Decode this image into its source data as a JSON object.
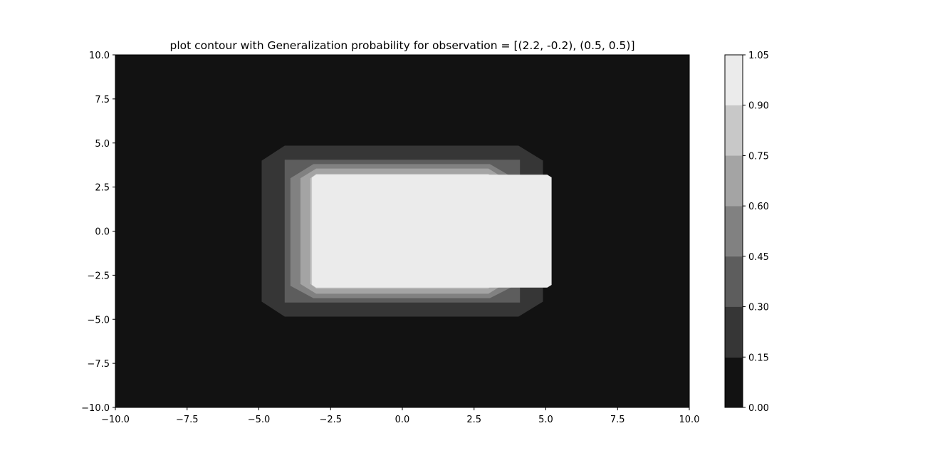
{
  "chart_data": {
    "type": "contour",
    "title": "plot contour with Generalization probability for observation = [(2.2, -0.2), (0.5, 0.5)]",
    "xlabel": "",
    "ylabel": "",
    "xlim": [
      -10,
      10
    ],
    "ylim": [
      -10,
      10
    ],
    "x_ticks": [
      "−10.0",
      "−7.5",
      "−5.0",
      "−2.5",
      "0.0",
      "2.5",
      "5.0",
      "7.5",
      "10.0"
    ],
    "y_ticks": [
      "10.0",
      "7.5",
      "5.0",
      "2.5",
      "0.0",
      "−2.5",
      "−5.0",
      "−7.5",
      "−10.0"
    ],
    "x_tick_values": [
      -10,
      -7.5,
      -5,
      -2.5,
      0,
      2.5,
      5,
      7.5,
      10
    ],
    "y_tick_values": [
      10,
      7.5,
      5,
      2.5,
      0,
      -2.5,
      -5,
      -7.5,
      -10
    ],
    "colormap": "gray",
    "colorbar": {
      "levels": [
        0.0,
        0.15,
        0.3,
        0.45,
        0.6,
        0.75,
        0.9,
        1.05
      ],
      "tick_labels": [
        "0.00",
        "0.15",
        "0.30",
        "0.45",
        "0.60",
        "0.75",
        "0.90",
        "1.05"
      ],
      "colors": [
        "#121212",
        "#363636",
        "#5d5d5d",
        "#818181",
        "#a4a4a4",
        "#c8c8c8",
        "#ebebeb"
      ]
    },
    "grid": false,
    "regions": [
      {
        "level_index": 0,
        "range": [
          0.0,
          0.15
        ],
        "color": "#121212",
        "polygon": [
          [
            -10,
            10
          ],
          [
            10,
            10
          ],
          [
            10,
            -10
          ],
          [
            -10,
            -10
          ]
        ]
      },
      {
        "level_index": 1,
        "range": [
          0.15,
          0.3
        ],
        "color": "#363636",
        "polygon": [
          [
            -4.1,
            4.85
          ],
          [
            4.05,
            4.85
          ],
          [
            4.9,
            4.0
          ],
          [
            4.9,
            -4.0
          ],
          [
            4.05,
            -4.85
          ],
          [
            -4.1,
            -4.85
          ],
          [
            -4.9,
            -4.0
          ],
          [
            -4.9,
            4.0
          ]
        ]
      },
      {
        "level_index": 2,
        "range": [
          0.3,
          0.45
        ],
        "color": "#5d5d5d",
        "polygon": [
          [
            -4.1,
            4.05
          ],
          [
            4.1,
            4.05
          ],
          [
            4.1,
            -4.05
          ],
          [
            -4.1,
            -4.05
          ]
        ]
      },
      {
        "level_index": 3,
        "range": [
          0.45,
          0.6
        ],
        "color": "#818181",
        "polygon": [
          [
            -3.1,
            3.8
          ],
          [
            3.05,
            3.8
          ],
          [
            3.9,
            3.0
          ],
          [
            3.9,
            -3.1
          ],
          [
            3.05,
            -3.8
          ],
          [
            -3.1,
            -3.8
          ],
          [
            -3.9,
            -3.1
          ],
          [
            -3.9,
            3.0
          ]
        ]
      },
      {
        "level_index": 4,
        "range": [
          0.6,
          0.75
        ],
        "color": "#a4a4a4",
        "polygon": [
          [
            -3.0,
            3.55
          ],
          [
            3.0,
            3.55
          ],
          [
            3.55,
            3.0
          ],
          [
            3.55,
            -3.0
          ],
          [
            3.0,
            -3.55
          ],
          [
            -3.0,
            -3.55
          ],
          [
            -3.55,
            -3.0
          ],
          [
            -3.55,
            3.0
          ]
        ]
      },
      {
        "level_index": 5,
        "range": [
          0.75,
          0.9
        ],
        "color": "#c8c8c8",
        "polygon": [
          [
            -3.0,
            3.25
          ],
          [
            3.0,
            3.25
          ],
          [
            3.2,
            3.0
          ],
          [
            3.2,
            -3.0
          ],
          [
            3.0,
            -3.25
          ],
          [
            -3.0,
            -3.25
          ],
          [
            -3.2,
            -3.0
          ],
          [
            -3.2,
            3.0
          ]
        ]
      },
      {
        "level_index": 6,
        "range": [
          0.9,
          1.05
        ],
        "color": "#ebebeb",
        "polygon": [
          [
            -3.0,
            3.2
          ],
          [
            5.05,
            3.2
          ],
          [
            5.2,
            3.05
          ],
          [
            5.2,
            -3.05
          ],
          [
            5.05,
            -3.2
          ],
          [
            -3.0,
            -3.2
          ],
          [
            -3.15,
            -3.05
          ],
          [
            -3.15,
            3.05
          ]
        ]
      }
    ]
  }
}
